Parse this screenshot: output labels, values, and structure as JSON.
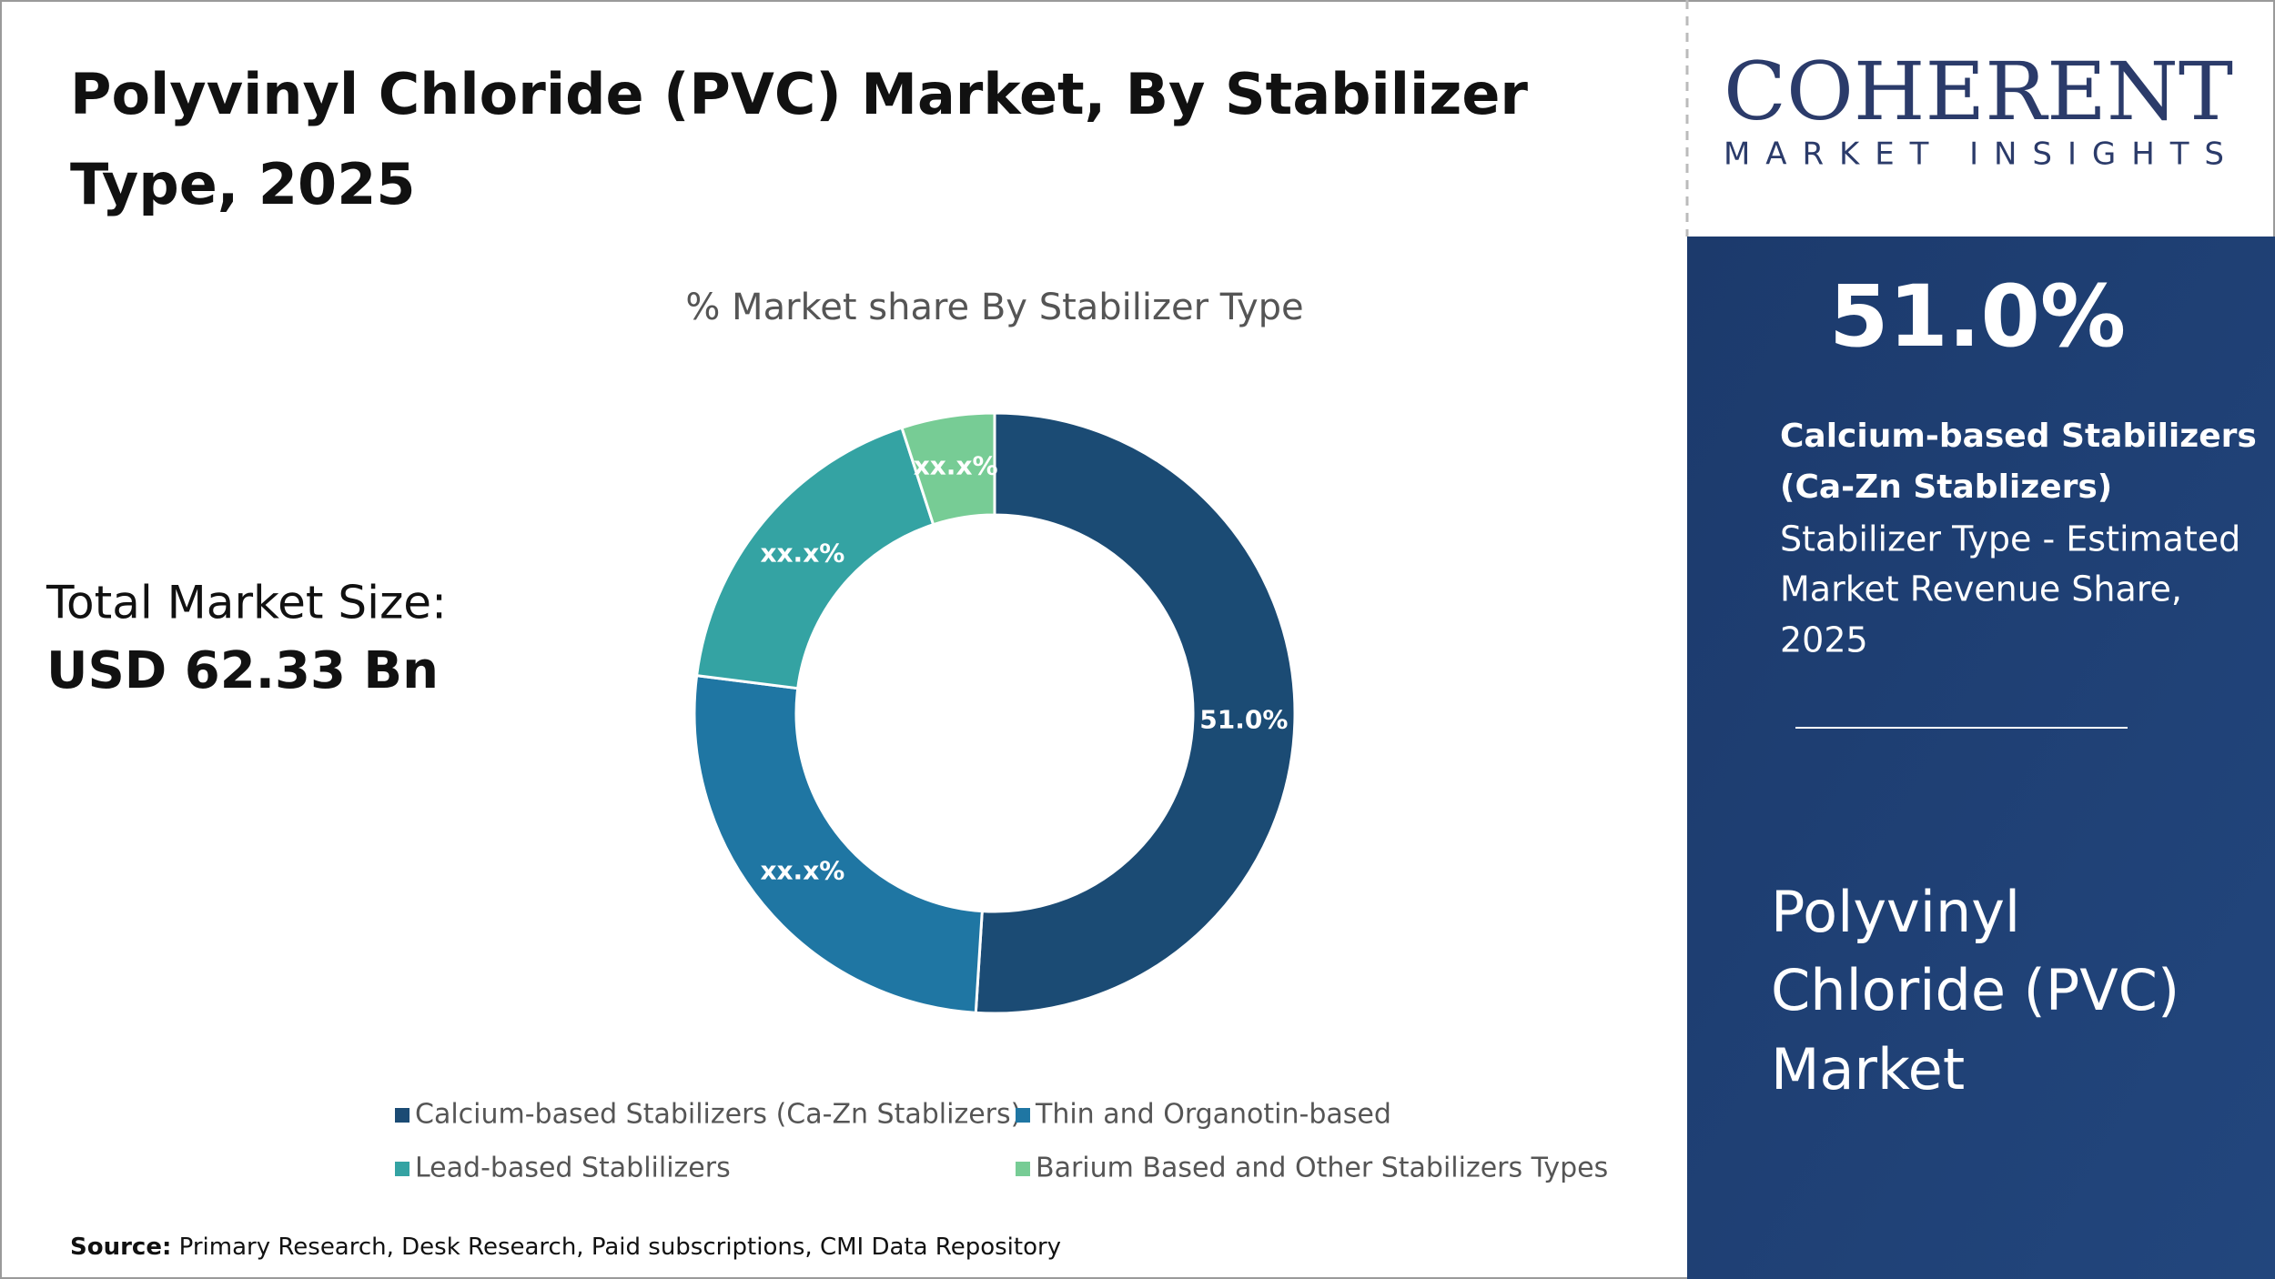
{
  "chart_data": {
    "type": "donut",
    "title_lines": [
      "Polyvinyl Chloride (PVC) Market, By Stabilizer",
      "Type, 2025"
    ],
    "subtitle": "% Market share By Stabilizer Type",
    "categories": [
      "Calcium-based Stabilizers (Ca-Zn Stablizers)",
      "Thin and Organotin-based",
      "Lead-based Stablilizers",
      "Barium Based and Other Stabilizers Types"
    ],
    "values": [
      51.0,
      26,
      18,
      5
    ],
    "value_labels": [
      "51.0%",
      "xx.x%",
      "xx.x%",
      "xx.x%"
    ],
    "colors": [
      "#1b4b74",
      "#1f76a3",
      "#34a3a3",
      "#77cc95"
    ],
    "legend": "bottom"
  },
  "market_size": {
    "label": "Total Market Size:",
    "value": "USD 62.33 Bn"
  },
  "source": {
    "label": "Source:",
    "text": "Primary Research, Desk Research, Paid subscriptions, CMI Data Repository"
  },
  "logo": {
    "name": "COHERENT",
    "tagline": "MARKET INSIGHTS"
  },
  "highlight": {
    "value": "51.0%",
    "segment_lines": [
      "Calcium-based Stabilizers",
      "(Ca-Zn Stablizers)"
    ],
    "description_lines": [
      "Stabilizer Type - Estimated",
      "Market Revenue Share,",
      "2025"
    ],
    "market_lines": [
      "Polyvinyl",
      "Chloride (PVC)",
      "Market"
    ]
  }
}
